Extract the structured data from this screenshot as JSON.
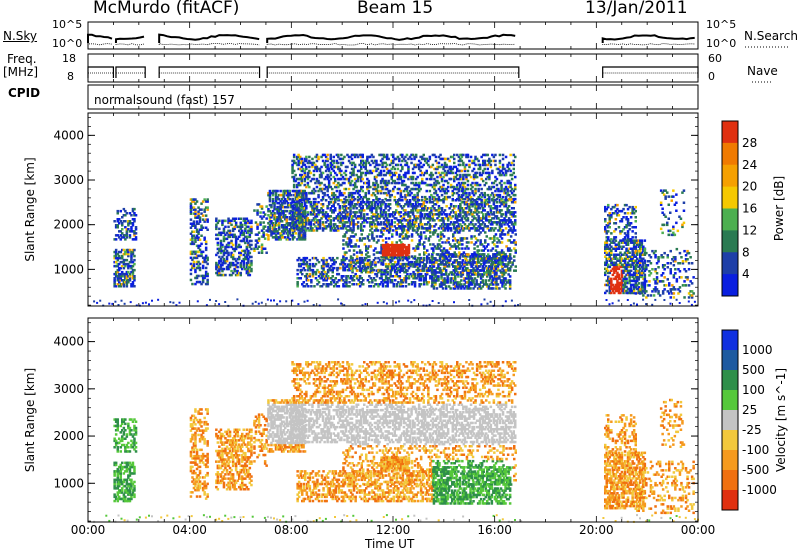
{
  "header": {
    "station": "McMurdo (fitACF)",
    "beam": "Beam 15",
    "date": "13/Jan/2011"
  },
  "panels": {
    "nsky_label": "N.Sky",
    "nsearch_label": "N.Search",
    "freq_label": "Freq.",
    "freq_unit": "[MHz]",
    "nave_label": "Nave",
    "cpid_label": "CPID",
    "cpid_value": "normalsound (fast) 157",
    "noise_ticks_left": [
      "10^5",
      "10^0"
    ],
    "noise_ticks_right": [
      "10^5",
      "10^0"
    ],
    "freq_ticks": [
      "18",
      "8"
    ],
    "nave_ticks": [
      "60",
      "0"
    ]
  },
  "chart_data": [
    {
      "type": "heatmap",
      "title": "",
      "ylabel": "Slant Range [km]",
      "xlabel": "",
      "ylim": [
        180,
        4500
      ],
      "yticks": [
        "1000",
        "2000",
        "3000",
        "4000"
      ],
      "colorbar_label": "Power [dB]",
      "colorbar_ticks": [
        "4",
        "8",
        "12",
        "16",
        "20",
        "24",
        "28"
      ],
      "colors": [
        "#0a1fe0",
        "#1e3fa8",
        "#2a7a52",
        "#4caf50",
        "#f5c800",
        "#f5a000",
        "#f07a00",
        "#e03010"
      ]
    },
    {
      "type": "heatmap",
      "title": "",
      "ylabel": "Slant Range [km]",
      "xlabel": "Time UT",
      "ylim": [
        180,
        4500
      ],
      "yticks": [
        "1000",
        "2000",
        "3000",
        "4000"
      ],
      "colorbar_label": "Velocity [m s^-1]",
      "colorbar_ticks": [
        "1000",
        "500",
        "100",
        "25",
        "-25",
        "-100",
        "-500",
        "-1000"
      ],
      "colors": [
        "#1030e0",
        "#1e5aa0",
        "#2f8f4a",
        "#55c83a",
        "#c4c4c4",
        "#f2c83c",
        "#f59a1e",
        "#f07010",
        "#e03010"
      ]
    }
  ],
  "xaxis": {
    "label": "Time UT",
    "ticks": [
      "00:00",
      "04:00",
      "08:00",
      "12:00",
      "16:00",
      "20:00",
      "00:00"
    ]
  }
}
